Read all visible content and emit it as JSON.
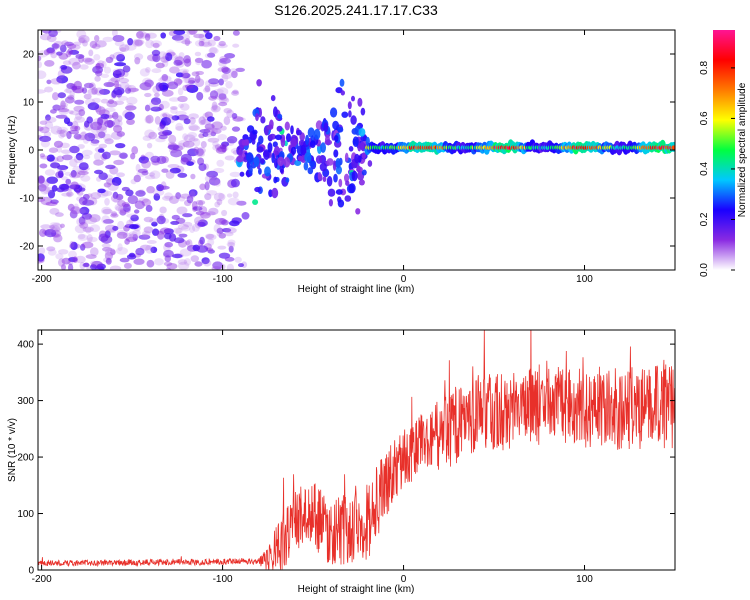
{
  "title": "S126.2025.241.17.17.C33",
  "chart_data": [
    {
      "type": "heatmap",
      "title": "S126.2025.241.17.17.C33",
      "xlabel": "Height of straight line (km)",
      "ylabel": "Frequency (Hz)",
      "xlim": [
        -202,
        150
      ],
      "ylim": [
        -25,
        25
      ],
      "xticks": [
        -200,
        -100,
        0,
        100
      ],
      "yticks": [
        -20,
        -10,
        0,
        10,
        20
      ],
      "xtick_labels": [
        "-200",
        "-100",
        "0",
        "100"
      ],
      "ytick_labels": [
        "-20",
        "-10",
        "0",
        "10",
        "20"
      ],
      "colorbar": {
        "label": "Normalized spectral amplitude",
        "range": [
          0,
          0.95
        ],
        "ticks": [
          0,
          0.2,
          0.4,
          0.6,
          0.8
        ],
        "tick_labels": [
          "0.0",
          "0.2",
          "0.4",
          "0.6",
          "0.8"
        ],
        "colors": [
          "#ffffff",
          "#8a2be2",
          "#1a00ff",
          "#00c8ff",
          "#00ff40",
          "#ffff00",
          "#ff7a00",
          "#ff0000",
          "#ff1493"
        ]
      },
      "regions": [
        {
          "name": "noise",
          "x_range": [
            -202,
            -92
          ],
          "freq_range": [
            -25,
            25
          ],
          "amplitude_range": [
            0.0,
            0.15
          ]
        },
        {
          "name": "fan-out",
          "x_range": [
            -92,
            -18
          ],
          "freq_range": [
            -12,
            12
          ],
          "amplitude_range": [
            0.1,
            0.3
          ]
        },
        {
          "name": "tone",
          "x_range": [
            -20,
            150
          ],
          "freq_range": [
            -1,
            2
          ],
          "center_freq": 0.5,
          "amplitude_range": [
            0.3,
            0.95
          ]
        }
      ]
    },
    {
      "type": "line",
      "xlabel": "Height of straight line (km)",
      "ylabel": "SNR (10 * v/v)",
      "xlim": [
        -202,
        150
      ],
      "ylim": [
        0,
        425
      ],
      "xticks": [
        -200,
        -100,
        0,
        100
      ],
      "yticks": [
        0,
        100,
        200,
        300,
        400
      ],
      "xtick_labels": [
        "-200",
        "-100",
        "0",
        "100"
      ],
      "ytick_labels": [
        "0",
        "100",
        "200",
        "300",
        "400"
      ],
      "color": "#e8302a",
      "envelope": {
        "x": [
          -202,
          -80,
          -70,
          -60,
          -50,
          -40,
          -30,
          -25,
          -20,
          -10,
          0,
          20,
          40,
          60,
          80,
          100,
          120,
          150
        ],
        "y": [
          12,
          15,
          30,
          90,
          100,
          65,
          70,
          95,
          85,
          150,
          200,
          240,
          275,
          285,
          295,
          290,
          285,
          290
        ]
      },
      "noise_amp": {
        "x": [
          -202,
          -80,
          -70,
          -20,
          0,
          30,
          150
        ],
        "y": [
          5,
          6,
          50,
          70,
          50,
          70,
          75
        ]
      }
    }
  ]
}
